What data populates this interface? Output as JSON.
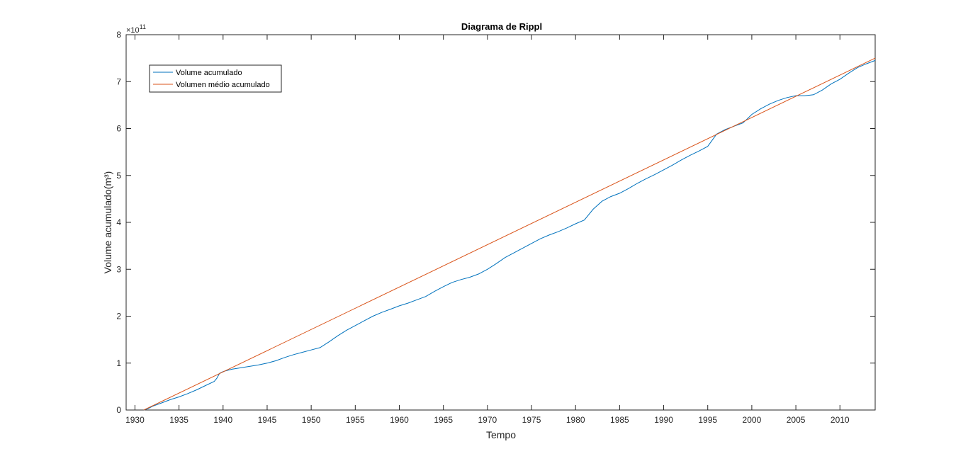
{
  "chart_data": {
    "type": "line",
    "title": "Diagrama de Rippl",
    "xlabel": "Tempo",
    "ylabel": "Volume acumulado(m³)",
    "y_exponent_label": "×10",
    "y_exponent_power": "11",
    "xlim": [
      1929,
      2014
    ],
    "ylim": [
      0,
      8
    ],
    "y_scale_note": "values in units of 1e11 m³",
    "x_ticks": [
      1930,
      1935,
      1940,
      1945,
      1950,
      1955,
      1960,
      1965,
      1970,
      1975,
      1980,
      1985,
      1990,
      1995,
      2000,
      2005,
      2010
    ],
    "y_ticks": [
      0,
      1,
      2,
      3,
      4,
      5,
      6,
      7,
      8
    ],
    "grid": false,
    "box": true,
    "legend_placement": "top-left",
    "colors": {
      "series1": "#0072BD",
      "series2": "#D95319"
    },
    "series": [
      {
        "name": "Volume acumulado",
        "color": "#0072BD",
        "x": [
          1931.0,
          1931.5,
          1932,
          1933,
          1934,
          1935,
          1936,
          1937,
          1938,
          1939,
          1939.3,
          1939.6,
          1940,
          1941,
          1942,
          1943,
          1944,
          1945,
          1946,
          1947,
          1948,
          1949,
          1950,
          1951,
          1952,
          1953,
          1954,
          1955,
          1956,
          1957,
          1958,
          1959,
          1960,
          1961,
          1962,
          1963,
          1964,
          1965,
          1966,
          1967,
          1968,
          1969,
          1970,
          1971,
          1972,
          1973,
          1974,
          1975,
          1976,
          1977,
          1978,
          1979,
          1980,
          1981,
          1982,
          1983,
          1984,
          1985,
          1986,
          1987,
          1988,
          1989,
          1990,
          1991,
          1992,
          1993,
          1994,
          1995,
          1996,
          1997,
          1998,
          1999,
          2000,
          2001,
          2002,
          2003,
          2004,
          2005,
          2006,
          2007,
          2008,
          2009,
          2010,
          2011,
          2012,
          2013,
          2014
        ],
        "y": [
          0.0,
          0.03,
          0.08,
          0.15,
          0.22,
          0.28,
          0.35,
          0.43,
          0.52,
          0.61,
          0.68,
          0.78,
          0.82,
          0.87,
          0.9,
          0.93,
          0.96,
          1.0,
          1.05,
          1.12,
          1.18,
          1.23,
          1.28,
          1.33,
          1.45,
          1.58,
          1.7,
          1.8,
          1.9,
          2.0,
          2.08,
          2.15,
          2.22,
          2.28,
          2.35,
          2.42,
          2.53,
          2.63,
          2.72,
          2.78,
          2.83,
          2.9,
          3.0,
          3.12,
          3.25,
          3.35,
          3.45,
          3.55,
          3.65,
          3.73,
          3.8,
          3.88,
          3.97,
          4.05,
          4.28,
          4.45,
          4.55,
          4.62,
          4.72,
          4.83,
          4.93,
          5.02,
          5.12,
          5.22,
          5.33,
          5.43,
          5.52,
          5.62,
          5.88,
          5.98,
          6.05,
          6.12,
          6.3,
          6.42,
          6.52,
          6.6,
          6.66,
          6.7,
          6.7,
          6.72,
          6.82,
          6.95,
          7.05,
          7.18,
          7.3,
          7.38,
          7.45
        ]
      },
      {
        "name": "Volumen médio acumulado",
        "color": "#D95319",
        "x": [
          1931,
          2014
        ],
        "y": [
          0.0,
          7.5
        ]
      }
    ]
  }
}
